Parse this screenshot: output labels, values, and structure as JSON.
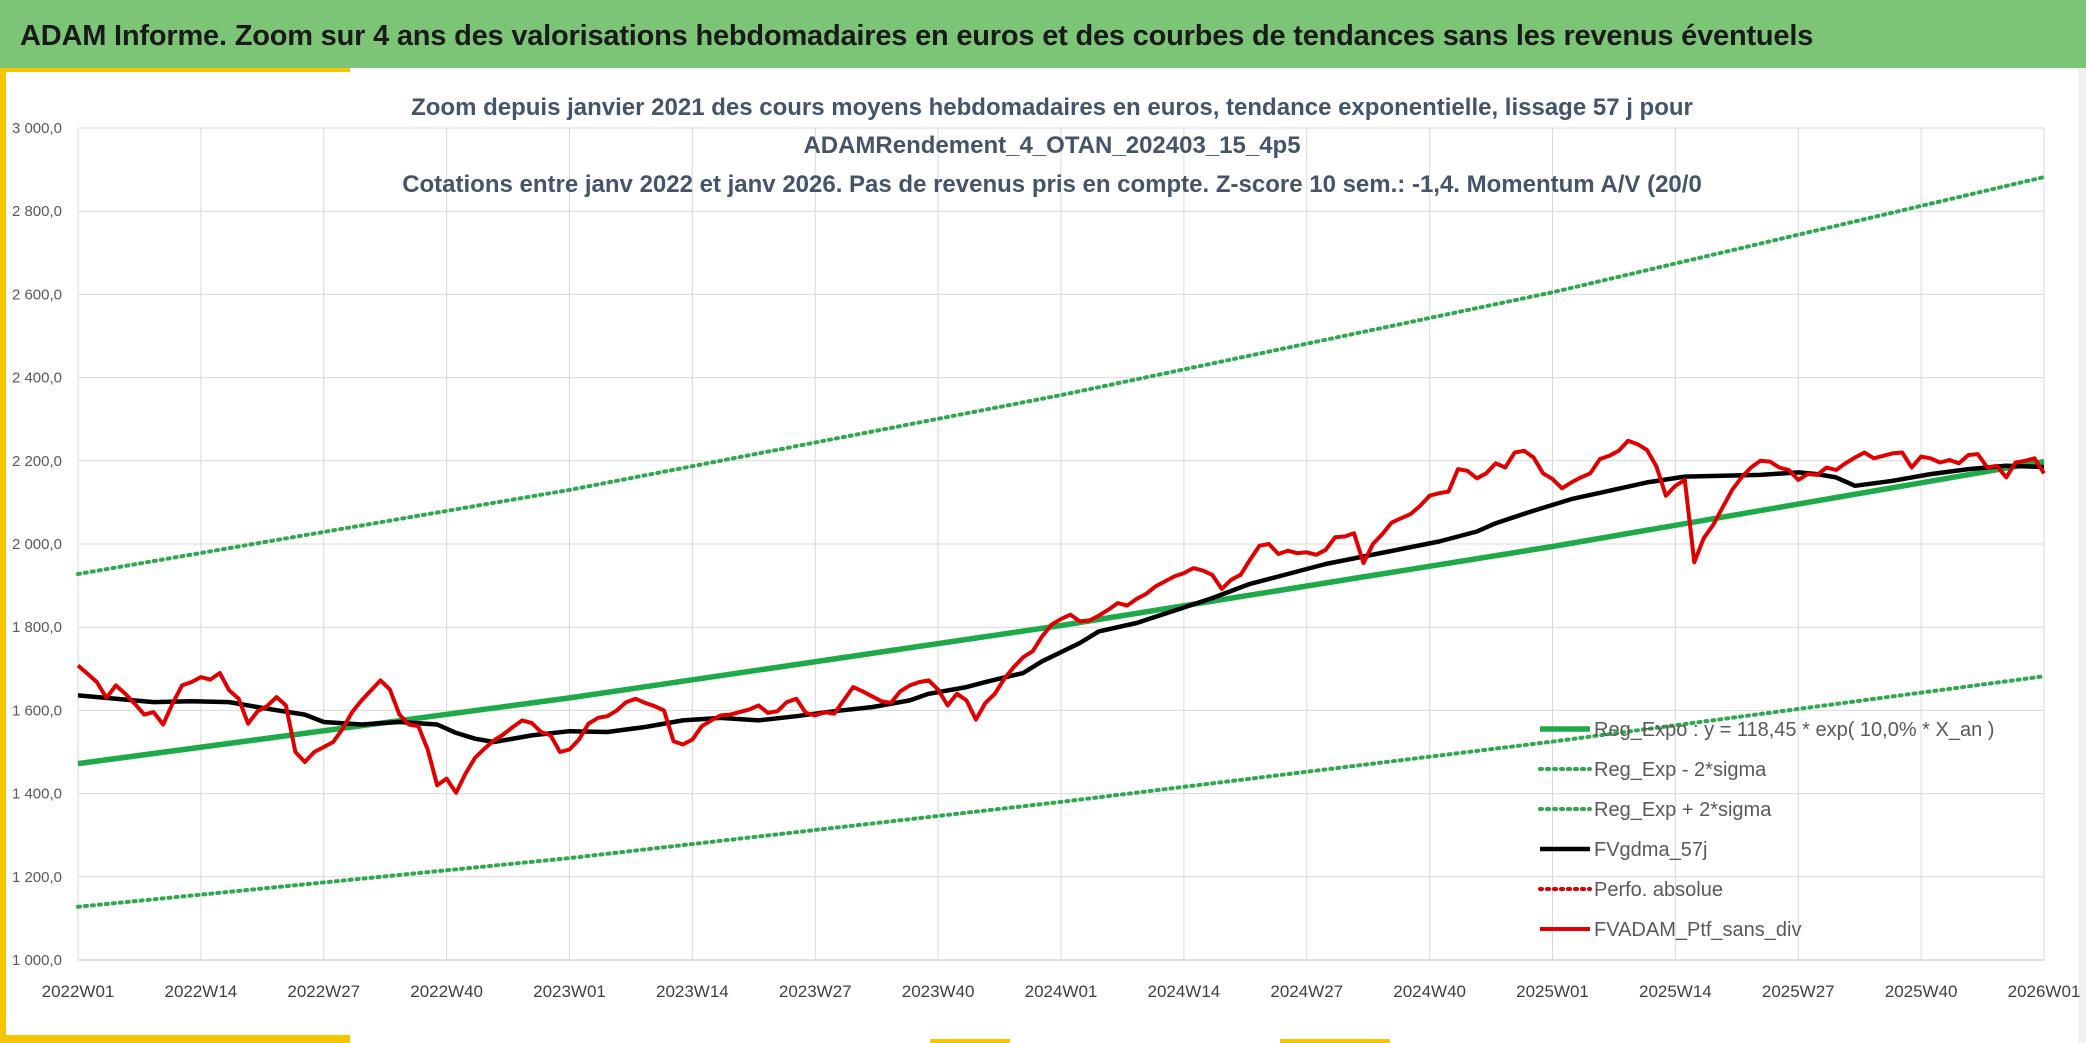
{
  "banner": {
    "title": "ADAM Informe. Zoom sur 4 ans des valorisations hebdomadaires en euros et des courbes de tendances sans les revenus éventuels"
  },
  "colors": {
    "banner_bg": "#7cc576",
    "accent_yellow": "#f6c500",
    "reg_expo": "#1faa4a",
    "sigma_bands": "#2fa84f",
    "moving_avg": "#000000",
    "perfo_absolue": "#e00000",
    "portfolio": "#e00000"
  },
  "chart_data": {
    "type": "line",
    "title_lines": [
      "Zoom depuis janvier 2021 des cours moyens hebdomadaires en euros, tendance exponentielle, lissage 57 j pour",
      "ADAMRendement_4_OTAN_202403_15_4p5",
      "Cotations entre janv 2022 et janv 2026. Pas de revenus pris en compte. Z-score 10 sem.: -1,4. Momentum A/V (20/0"
    ],
    "ylim": [
      1000,
      3000
    ],
    "yticks": [
      "1 000,0",
      "1 200,0",
      "1 400,0",
      "1 600,0",
      "1 800,0",
      "2 000,0",
      "2 200,0",
      "2 400,0",
      "2 600,0",
      "2 800,0",
      "3 000,0"
    ],
    "xlim": [
      0,
      208
    ],
    "xticks": [
      {
        "x": 0,
        "label": "2022W01"
      },
      {
        "x": 13,
        "label": "2022W14"
      },
      {
        "x": 26,
        "label": "2022W27"
      },
      {
        "x": 39,
        "label": "2022W40"
      },
      {
        "x": 52,
        "label": "2023W01"
      },
      {
        "x": 65,
        "label": "2023W14"
      },
      {
        "x": 78,
        "label": "2023W27"
      },
      {
        "x": 91,
        "label": "2023W40"
      },
      {
        "x": 104,
        "label": "2024W01"
      },
      {
        "x": 117,
        "label": "2024W14"
      },
      {
        "x": 130,
        "label": "2024W27"
      },
      {
        "x": 143,
        "label": "2024W40"
      },
      {
        "x": 156,
        "label": "2025W01"
      },
      {
        "x": 169,
        "label": "2025W14"
      },
      {
        "x": 182,
        "label": "2025W27"
      },
      {
        "x": 195,
        "label": "2025W40"
      },
      {
        "x": 208,
        "label": "2026W01"
      }
    ],
    "legend_position": "bottom-right",
    "series": [
      {
        "name": "Reg_Expo : y = 118,45 * exp( 10,0% *  X_an )",
        "style": "solid-thick",
        "color": "#1faa4a",
        "points": [
          [
            0,
            1472
          ],
          [
            52,
            1630
          ],
          [
            104,
            1804
          ],
          [
            156,
            1994
          ],
          [
            208,
            2198
          ]
        ]
      },
      {
        "name": "Reg_Exp - 2*sigma",
        "style": "dotted",
        "color": "#2fa84f",
        "points": [
          [
            0,
            1128
          ],
          [
            52,
            1245
          ],
          [
            104,
            1380
          ],
          [
            156,
            1525
          ],
          [
            208,
            1682
          ]
        ]
      },
      {
        "name": "Reg_Exp + 2*sigma",
        "style": "dotted",
        "color": "#2fa84f",
        "points": [
          [
            0,
            1928
          ],
          [
            52,
            2130
          ],
          [
            104,
            2358
          ],
          [
            156,
            2605
          ],
          [
            208,
            2882
          ]
        ]
      },
      {
        "name": "FVgdma_57j",
        "style": "solid-thick",
        "color": "#000000",
        "points": [
          [
            0,
            1636
          ],
          [
            4,
            1628
          ],
          [
            8,
            1620
          ],
          [
            12,
            1622
          ],
          [
            16,
            1620
          ],
          [
            20,
            1604
          ],
          [
            24,
            1590
          ],
          [
            26,
            1572
          ],
          [
            30,
            1566
          ],
          [
            34,
            1572
          ],
          [
            38,
            1566
          ],
          [
            40,
            1546
          ],
          [
            42,
            1532
          ],
          [
            44,
            1524
          ],
          [
            48,
            1540
          ],
          [
            52,
            1550
          ],
          [
            56,
            1548
          ],
          [
            60,
            1560
          ],
          [
            64,
            1576
          ],
          [
            68,
            1582
          ],
          [
            72,
            1576
          ],
          [
            76,
            1586
          ],
          [
            80,
            1598
          ],
          [
            84,
            1608
          ],
          [
            88,
            1624
          ],
          [
            90,
            1640
          ],
          [
            94,
            1656
          ],
          [
            96,
            1668
          ],
          [
            100,
            1690
          ],
          [
            102,
            1718
          ],
          [
            106,
            1762
          ],
          [
            108,
            1790
          ],
          [
            112,
            1810
          ],
          [
            116,
            1840
          ],
          [
            120,
            1870
          ],
          [
            124,
            1904
          ],
          [
            128,
            1928
          ],
          [
            132,
            1952
          ],
          [
            136,
            1970
          ],
          [
            140,
            1988
          ],
          [
            144,
            2006
          ],
          [
            148,
            2030
          ],
          [
            150,
            2050
          ],
          [
            154,
            2080
          ],
          [
            158,
            2108
          ],
          [
            162,
            2128
          ],
          [
            166,
            2148
          ],
          [
            170,
            2162
          ],
          [
            174,
            2164
          ],
          [
            178,
            2166
          ],
          [
            182,
            2172
          ],
          [
            184,
            2168
          ],
          [
            186,
            2160
          ],
          [
            188,
            2140
          ],
          [
            192,
            2152
          ],
          [
            196,
            2168
          ],
          [
            200,
            2180
          ],
          [
            204,
            2188
          ],
          [
            208,
            2185
          ]
        ]
      },
      {
        "name": "Perfo. absolue",
        "style": "dotted",
        "color": "#e00000",
        "points": []
      },
      {
        "name": "FVADAM_Ptf_sans_div",
        "style": "solid-thick",
        "color": "#e00000",
        "points": [
          [
            0,
            1708
          ],
          [
            1,
            1688
          ],
          [
            2,
            1668
          ],
          [
            3,
            1630
          ],
          [
            4,
            1660
          ],
          [
            5,
            1640
          ],
          [
            6,
            1616
          ],
          [
            7,
            1590
          ],
          [
            8,
            1596
          ],
          [
            9,
            1566
          ],
          [
            10,
            1616
          ],
          [
            11,
            1660
          ],
          [
            12,
            1668
          ],
          [
            13,
            1680
          ],
          [
            14,
            1674
          ],
          [
            15,
            1690
          ],
          [
            16,
            1648
          ],
          [
            17,
            1628
          ],
          [
            18,
            1568
          ],
          [
            19,
            1598
          ],
          [
            20,
            1610
          ],
          [
            21,
            1632
          ],
          [
            22,
            1612
          ],
          [
            23,
            1500
          ],
          [
            24,
            1476
          ],
          [
            25,
            1500
          ],
          [
            26,
            1512
          ],
          [
            27,
            1524
          ],
          [
            28,
            1556
          ],
          [
            29,
            1596
          ],
          [
            30,
            1624
          ],
          [
            31,
            1648
          ],
          [
            32,
            1672
          ],
          [
            33,
            1650
          ],
          [
            34,
            1590
          ],
          [
            35,
            1566
          ],
          [
            36,
            1562
          ],
          [
            37,
            1506
          ],
          [
            38,
            1420
          ],
          [
            39,
            1436
          ],
          [
            40,
            1402
          ],
          [
            41,
            1448
          ],
          [
            42,
            1486
          ],
          [
            43,
            1508
          ],
          [
            44,
            1528
          ],
          [
            45,
            1542
          ],
          [
            46,
            1560
          ],
          [
            47,
            1576
          ],
          [
            48,
            1570
          ],
          [
            49,
            1548
          ],
          [
            50,
            1540
          ],
          [
            51,
            1500
          ],
          [
            52,
            1506
          ],
          [
            53,
            1530
          ],
          [
            54,
            1568
          ],
          [
            55,
            1582
          ],
          [
            56,
            1586
          ],
          [
            57,
            1600
          ],
          [
            58,
            1620
          ],
          [
            59,
            1628
          ],
          [
            60,
            1618
          ],
          [
            61,
            1610
          ],
          [
            62,
            1600
          ],
          [
            63,
            1526
          ],
          [
            64,
            1518
          ],
          [
            65,
            1530
          ],
          [
            66,
            1562
          ],
          [
            67,
            1576
          ],
          [
            68,
            1588
          ],
          [
            69,
            1590
          ],
          [
            70,
            1596
          ],
          [
            71,
            1602
          ],
          [
            72,
            1612
          ],
          [
            73,
            1594
          ],
          [
            74,
            1598
          ],
          [
            75,
            1620
          ],
          [
            76,
            1628
          ],
          [
            77,
            1594
          ],
          [
            78,
            1588
          ],
          [
            79,
            1596
          ],
          [
            80,
            1592
          ],
          [
            81,
            1624
          ],
          [
            82,
            1656
          ],
          [
            83,
            1646
          ],
          [
            84,
            1634
          ],
          [
            85,
            1622
          ],
          [
            86,
            1618
          ],
          [
            87,
            1646
          ],
          [
            88,
            1660
          ],
          [
            89,
            1668
          ],
          [
            90,
            1672
          ],
          [
            91,
            1650
          ],
          [
            92,
            1612
          ],
          [
            93,
            1640
          ],
          [
            94,
            1624
          ],
          [
            95,
            1578
          ],
          [
            96,
            1618
          ],
          [
            97,
            1640
          ],
          [
            98,
            1676
          ],
          [
            99,
            1704
          ],
          [
            100,
            1728
          ],
          [
            101,
            1742
          ],
          [
            102,
            1778
          ],
          [
            103,
            1806
          ],
          [
            104,
            1820
          ],
          [
            105,
            1830
          ],
          [
            106,
            1814
          ],
          [
            107,
            1816
          ],
          [
            108,
            1828
          ],
          [
            109,
            1842
          ],
          [
            110,
            1858
          ],
          [
            111,
            1852
          ],
          [
            112,
            1868
          ],
          [
            113,
            1880
          ],
          [
            114,
            1898
          ],
          [
            115,
            1910
          ],
          [
            116,
            1922
          ],
          [
            117,
            1930
          ],
          [
            118,
            1942
          ],
          [
            119,
            1936
          ],
          [
            120,
            1926
          ],
          [
            121,
            1892
          ],
          [
            122,
            1914
          ],
          [
            123,
            1926
          ],
          [
            124,
            1962
          ],
          [
            125,
            1996
          ],
          [
            126,
            2000
          ],
          [
            127,
            1976
          ],
          [
            128,
            1984
          ],
          [
            129,
            1978
          ],
          [
            130,
            1980
          ],
          [
            131,
            1974
          ],
          [
            132,
            1986
          ],
          [
            133,
            2016
          ],
          [
            134,
            2018
          ],
          [
            135,
            2026
          ],
          [
            136,
            1954
          ],
          [
            137,
            2000
          ],
          [
            138,
            2024
          ],
          [
            139,
            2052
          ],
          [
            140,
            2062
          ],
          [
            141,
            2072
          ],
          [
            142,
            2092
          ],
          [
            143,
            2116
          ],
          [
            144,
            2122
          ],
          [
            145,
            2126
          ],
          [
            146,
            2180
          ],
          [
            147,
            2176
          ],
          [
            148,
            2158
          ],
          [
            149,
            2170
          ],
          [
            150,
            2194
          ],
          [
            151,
            2184
          ],
          [
            152,
            2220
          ],
          [
            153,
            2224
          ],
          [
            154,
            2208
          ],
          [
            155,
            2170
          ],
          [
            156,
            2156
          ],
          [
            157,
            2134
          ],
          [
            158,
            2148
          ],
          [
            159,
            2160
          ],
          [
            160,
            2170
          ],
          [
            161,
            2204
          ],
          [
            162,
            2212
          ],
          [
            163,
            2224
          ],
          [
            164,
            2248
          ],
          [
            165,
            2240
          ],
          [
            166,
            2226
          ],
          [
            167,
            2186
          ],
          [
            168,
            2116
          ],
          [
            169,
            2140
          ],
          [
            170,
            2154
          ],
          [
            171,
            1956
          ],
          [
            172,
            2014
          ],
          [
            173,
            2046
          ],
          [
            174,
            2088
          ],
          [
            175,
            2130
          ],
          [
            176,
            2160
          ],
          [
            177,
            2184
          ],
          [
            178,
            2200
          ],
          [
            179,
            2198
          ],
          [
            180,
            2184
          ],
          [
            181,
            2178
          ],
          [
            182,
            2154
          ],
          [
            183,
            2168
          ],
          [
            184,
            2166
          ],
          [
            185,
            2184
          ],
          [
            186,
            2178
          ],
          [
            187,
            2194
          ],
          [
            188,
            2208
          ],
          [
            189,
            2220
          ],
          [
            190,
            2206
          ],
          [
            191,
            2212
          ],
          [
            192,
            2218
          ],
          [
            193,
            2220
          ],
          [
            194,
            2184
          ],
          [
            195,
            2210
          ],
          [
            196,
            2206
          ],
          [
            197,
            2196
          ],
          [
            198,
            2202
          ],
          [
            199,
            2194
          ],
          [
            200,
            2214
          ],
          [
            201,
            2216
          ],
          [
            202,
            2184
          ],
          [
            203,
            2188
          ],
          [
            204,
            2160
          ],
          [
            205,
            2196
          ],
          [
            206,
            2200
          ],
          [
            207,
            2206
          ],
          [
            208,
            2170
          ]
        ]
      }
    ]
  }
}
